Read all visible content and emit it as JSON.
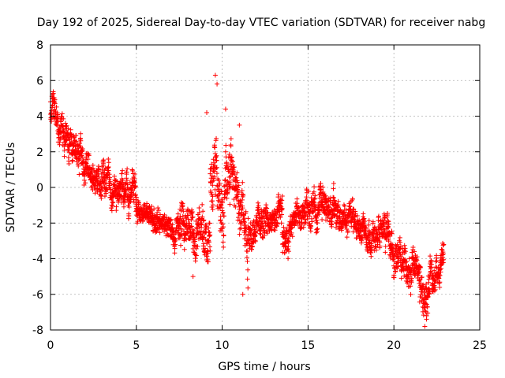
{
  "chart_data": {
    "type": "scatter",
    "title": "Day 192 of 2025, Sidereal Day-to-day VTEC variation (SDTVAR) for receiver nabg",
    "xlabel": "GPS time / hours",
    "ylabel": "SDTVAR / TECUs",
    "xlim": [
      0,
      25
    ],
    "ylim": [
      -8,
      8
    ],
    "xticks": [
      0,
      5,
      10,
      15,
      20,
      25
    ],
    "yticks": [
      -8,
      -6,
      -4,
      -2,
      0,
      2,
      4,
      6,
      8
    ],
    "grid": true,
    "marker": "+",
    "color": "#ff0000",
    "series": [
      {
        "name": "SDTVAR",
        "segments": [
          {
            "x0": 0.0,
            "x1": 0.9,
            "center": [
              4.6,
              2.5
            ],
            "spread": 1.2
          },
          {
            "x0": 0.9,
            "x1": 3.0,
            "center": [
              2.8,
              0.3
            ],
            "spread": 1.3
          },
          {
            "x0": 3.0,
            "x1": 5.0,
            "center": [
              0.8,
              -0.8
            ],
            "spread": 1.5
          },
          {
            "x0": 5.0,
            "x1": 7.5,
            "center": [
              -1.2,
              -2.5
            ],
            "spread": 1.0
          },
          {
            "x0": 7.5,
            "x1": 9.3,
            "center": [
              -2.0,
              -2.5
            ],
            "spread": 1.8
          },
          {
            "x0": 9.3,
            "x1": 10.5,
            "center": [
              -0.5,
              0.5
            ],
            "spread": 2.5
          },
          {
            "x0": 10.5,
            "x1": 11.5,
            "center": [
              2.2,
              -3.5
            ],
            "spread": 2.0
          },
          {
            "x0": 11.5,
            "x1": 13.5,
            "center": [
              -2.5,
              -1.5
            ],
            "spread": 1.3
          },
          {
            "x0": 13.5,
            "x1": 14.8,
            "center": [
              -2.8,
              -1.2
            ],
            "spread": 1.2
          },
          {
            "x0": 14.8,
            "x1": 16.5,
            "center": [
              -1.5,
              -0.5
            ],
            "spread": 1.4
          },
          {
            "x0": 16.5,
            "x1": 19.5,
            "center": [
              -1.5,
              -3.0
            ],
            "spread": 1.2
          },
          {
            "x0": 19.5,
            "x1": 21.5,
            "center": [
              -3.0,
              -5.0
            ],
            "spread": 1.5
          },
          {
            "x0": 21.5,
            "x1": 22.1,
            "center": [
              -6.0,
              -5.5
            ],
            "spread": 1.8
          },
          {
            "x0": 22.1,
            "x1": 22.9,
            "center": [
              -4.5,
              -4.5
            ],
            "spread": 1.3
          }
        ],
        "outliers": [
          {
            "x": 9.6,
            "y": 6.3
          },
          {
            "x": 9.7,
            "y": 5.8
          },
          {
            "x": 9.1,
            "y": 4.2
          },
          {
            "x": 10.2,
            "y": 4.4
          },
          {
            "x": 11.0,
            "y": 3.5
          },
          {
            "x": 21.8,
            "y": -7.8
          },
          {
            "x": 21.9,
            "y": -7.4
          },
          {
            "x": 11.2,
            "y": -6.0
          },
          {
            "x": 8.3,
            "y": -5.0
          },
          {
            "x": 0.2,
            "y": 4.8
          }
        ]
      }
    ]
  }
}
